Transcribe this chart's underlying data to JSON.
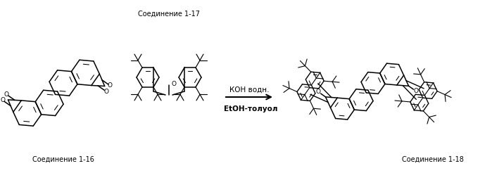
{
  "background_color": "#ffffff",
  "figsize": [
    6.99,
    2.56
  ],
  "dpi": 100,
  "labels": {
    "compound_16": "Соединение 1-16",
    "compound_17": "Соединение 1-17",
    "compound_18": "Соединение 1-18",
    "reagents_line1": "КОН водн.",
    "reagents_line2": "EtOH-толуол"
  },
  "font_sizes": {
    "compound_labels": 7.0,
    "reagents": 7.5,
    "O_label": 6.5
  }
}
